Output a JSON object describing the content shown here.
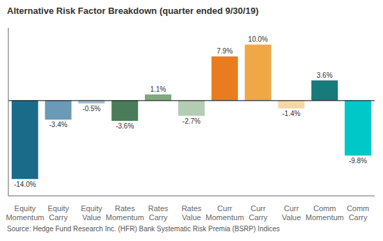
{
  "chart_data": {
    "type": "bar",
    "title": "Alternative Risk Factor Breakdown (quarter ended 9/30/19)",
    "categories": [
      "Equity\nMomentum",
      "Equity\nCarry",
      "Equity\nValue",
      "Rates\nMomentum",
      "Rates\nCarry",
      "Rates\nValue",
      "Curr\nMomentum",
      "Curr\nCarry",
      "Curr\nValue",
      "Comm\nMomentum",
      "Comm\nCarry"
    ],
    "values": [
      -14.0,
      -3.4,
      -0.5,
      -3.6,
      1.1,
      -2.7,
      7.9,
      10.0,
      -1.4,
      3.6,
      -9.8
    ],
    "value_labels": [
      "-14.0%",
      "-3.4%",
      "-0.5%",
      "-3.6%",
      "1.1%",
      "-2.7%",
      "7.9%",
      "10.0%",
      "-1.4%",
      "3.6%",
      "-9.8%"
    ],
    "colors": [
      "#1a6b8a",
      "#6a9ab5",
      "#a8bece",
      "#4a7c59",
      "#7daa7d",
      "#b2cdb2",
      "#e87c1e",
      "#f0a847",
      "#f5d8a8",
      "#177b7b",
      "#00c8c8"
    ],
    "ylim": [
      -17,
      13
    ],
    "data_labels": true,
    "grid": false,
    "tick_labels": "x",
    "annotations": [
      "Source: Hedge Fund Research Inc. (HFR) Bank Systematic Risk Premia (BSRP) Indices"
    ]
  }
}
